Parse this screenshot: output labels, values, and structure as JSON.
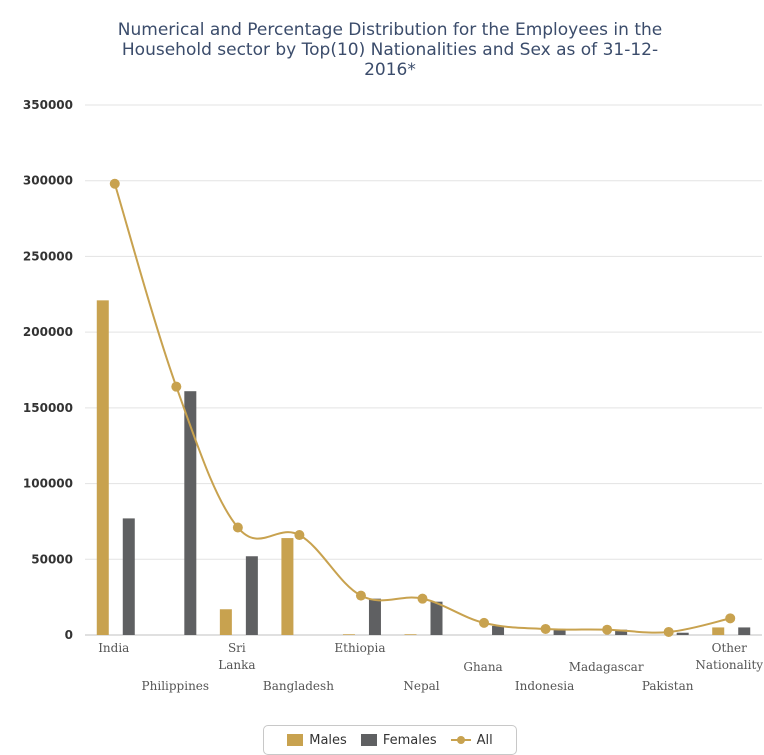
{
  "chart_data": {
    "type": "bar",
    "title_lines": [
      "Numerical and Percentage Distribution for the Employees in the",
      "Household sector by Top(10) Nationalities and Sex as of 31-12-",
      "2016*"
    ],
    "categories": [
      [
        "India"
      ],
      [
        "Philippines"
      ],
      [
        "Sri",
        "Lanka"
      ],
      [
        "Bangladesh"
      ],
      [
        "Ethiopia"
      ],
      [
        "Nepal"
      ],
      [
        "Ghana"
      ],
      [
        "Indonesia"
      ],
      [
        "Madagascar"
      ],
      [
        "Pakistan"
      ],
      [
        "Other",
        "Nationality"
      ]
    ],
    "series": [
      {
        "name": "Males",
        "kind": "bar",
        "color": "#c8a24f",
        "values": [
          221000,
          0,
          17000,
          64000,
          500,
          500,
          0,
          0,
          0,
          0,
          5000
        ]
      },
      {
        "name": "Females",
        "kind": "bar",
        "color": "#5f6062",
        "values": [
          77000,
          161000,
          52000,
          0,
          24000,
          22000,
          6000,
          4000,
          3500,
          1500,
          5000
        ]
      },
      {
        "name": "All",
        "kind": "line",
        "color": "#c8a24f",
        "values": [
          298000,
          164000,
          71000,
          66000,
          26000,
          24000,
          8000,
          4000,
          3500,
          2000,
          11000
        ]
      }
    ],
    "yticks": [
      "0",
      "50000",
      "100000",
      "150000",
      "200000",
      "250000",
      "300000",
      "350000"
    ],
    "ylim": [
      0,
      350000
    ],
    "grid": true,
    "legend_position": "bottom-center"
  }
}
